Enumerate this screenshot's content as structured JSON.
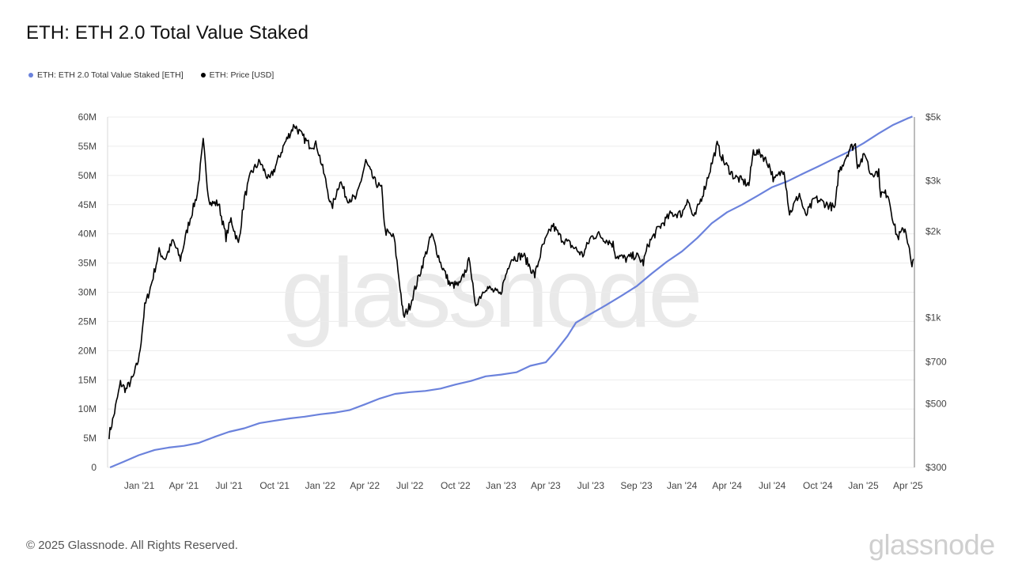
{
  "title": "ETH: ETH 2.0 Total Value Staked",
  "footer": "© 2025 Glassnode. All Rights Reserved.",
  "logo_text": "glassnode",
  "watermark_text": "glassnode",
  "colors": {
    "staked": "#6b82dc",
    "price": "#000000",
    "grid": "#ececec",
    "axis": "#7a7a7a"
  },
  "chart_data": {
    "type": "line",
    "title": "ETH: ETH 2.0 Total Value Staked",
    "x_ticks": [
      "Jan '21",
      "Apr '21",
      "Jul '21",
      "Oct '21",
      "Jan '22",
      "Apr '22",
      "Jul '22",
      "Oct '22",
      "Jan '23",
      "Apr '23",
      "Jul '23",
      "Sep '23",
      "Jan '24",
      "Apr '24",
      "Jul '24",
      "Oct '24",
      "Jan '25",
      "Apr '25"
    ],
    "y_left": {
      "ticks": [
        "0",
        "5M",
        "10M",
        "15M",
        "20M",
        "25M",
        "30M",
        "35M",
        "40M",
        "45M",
        "50M",
        "55M",
        "60M"
      ],
      "range": [
        0,
        60000000
      ]
    },
    "y_right": {
      "scale": "log",
      "ticks": [
        "$300",
        "$500",
        "$700",
        "$1k",
        "$2k",
        "$3k",
        "$5k"
      ],
      "tick_values": [
        300,
        500,
        700,
        1000,
        2000,
        3000,
        5000
      ],
      "range": [
        300,
        5000
      ]
    },
    "legend": "top-left",
    "grid": true,
    "series": [
      {
        "name": "ETH: ETH 2.0 Total Value Staked [ETH]",
        "axis": "left",
        "points": [
          [
            "2020-11-03",
            0
          ],
          [
            "2020-12-01",
            1000000
          ],
          [
            "2020-12-31",
            2100000
          ],
          [
            "2021-02-01",
            3000000
          ],
          [
            "2021-03-01",
            3400000
          ],
          [
            "2021-04-01",
            3700000
          ],
          [
            "2021-05-01",
            4200000
          ],
          [
            "2021-06-01",
            5200000
          ],
          [
            "2021-07-01",
            6100000
          ],
          [
            "2021-08-01",
            6700000
          ],
          [
            "2021-09-01",
            7600000
          ],
          [
            "2021-10-01",
            8000000
          ],
          [
            "2021-11-01",
            8400000
          ],
          [
            "2021-12-01",
            8700000
          ],
          [
            "2022-01-01",
            9100000
          ],
          [
            "2022-02-01",
            9400000
          ],
          [
            "2022-03-01",
            9800000
          ],
          [
            "2022-04-01",
            10800000
          ],
          [
            "2022-05-01",
            11800000
          ],
          [
            "2022-06-01",
            12600000
          ],
          [
            "2022-07-01",
            12900000
          ],
          [
            "2022-08-01",
            13100000
          ],
          [
            "2022-09-01",
            13500000
          ],
          [
            "2022-10-01",
            14200000
          ],
          [
            "2022-11-01",
            14800000
          ],
          [
            "2022-12-01",
            15600000
          ],
          [
            "2023-01-01",
            15900000
          ],
          [
            "2023-02-01",
            16300000
          ],
          [
            "2023-03-01",
            17400000
          ],
          [
            "2023-04-01",
            18000000
          ],
          [
            "2023-04-20",
            19800000
          ],
          [
            "2023-05-15",
            22500000
          ],
          [
            "2023-06-01",
            24800000
          ],
          [
            "2023-07-01",
            26300000
          ],
          [
            "2023-08-01",
            27800000
          ],
          [
            "2023-09-01",
            29400000
          ],
          [
            "2023-10-01",
            31000000
          ],
          [
            "2023-11-01",
            33200000
          ],
          [
            "2023-12-01",
            35200000
          ],
          [
            "2024-01-01",
            37000000
          ],
          [
            "2024-02-01",
            39300000
          ],
          [
            "2024-03-01",
            41800000
          ],
          [
            "2024-04-01",
            43700000
          ],
          [
            "2024-05-01",
            45000000
          ],
          [
            "2024-06-01",
            46500000
          ],
          [
            "2024-07-01",
            48000000
          ],
          [
            "2024-08-01",
            49000000
          ],
          [
            "2024-09-01",
            50300000
          ],
          [
            "2024-10-01",
            51500000
          ],
          [
            "2024-11-01",
            52800000
          ],
          [
            "2024-12-01",
            54000000
          ],
          [
            "2025-01-01",
            55500000
          ],
          [
            "2025-02-01",
            57200000
          ],
          [
            "2025-03-01",
            58600000
          ],
          [
            "2025-04-01",
            59800000
          ],
          [
            "2025-04-10",
            60100000
          ]
        ]
      },
      {
        "name": "ETH: Price [USD]",
        "axis": "right",
        "points": [
          [
            "2020-11-01",
            390
          ],
          [
            "2020-11-10",
            450
          ],
          [
            "2020-11-24",
            590
          ],
          [
            "2020-12-05",
            560
          ],
          [
            "2020-12-20",
            620
          ],
          [
            "2021-01-01",
            730
          ],
          [
            "2021-01-12",
            1090
          ],
          [
            "2021-01-25",
            1300
          ],
          [
            "2021-02-10",
            1700
          ],
          [
            "2021-02-22",
            1600
          ],
          [
            "2021-03-10",
            1850
          ],
          [
            "2021-03-25",
            1600
          ],
          [
            "2021-04-10",
            2100
          ],
          [
            "2021-04-28",
            2700
          ],
          [
            "2021-05-10",
            4100
          ],
          [
            "2021-05-20",
            2700
          ],
          [
            "2021-05-25",
            2500
          ],
          [
            "2021-06-10",
            2500
          ],
          [
            "2021-06-25",
            1900
          ],
          [
            "2021-07-05",
            2200
          ],
          [
            "2021-07-20",
            1800
          ],
          [
            "2021-08-01",
            2600
          ],
          [
            "2021-08-15",
            3200
          ],
          [
            "2021-09-01",
            3500
          ],
          [
            "2021-09-20",
            3000
          ],
          [
            "2021-10-01",
            3300
          ],
          [
            "2021-10-20",
            4000
          ],
          [
            "2021-11-10",
            4700
          ],
          [
            "2021-11-25",
            4300
          ],
          [
            "2021-12-10",
            4000
          ],
          [
            "2021-12-25",
            4000
          ],
          [
            "2022-01-10",
            3100
          ],
          [
            "2022-01-24",
            2400
          ],
          [
            "2022-02-10",
            3000
          ],
          [
            "2022-02-24",
            2600
          ],
          [
            "2022-03-15",
            2600
          ],
          [
            "2022-04-03",
            3500
          ],
          [
            "2022-04-20",
            3000
          ],
          [
            "2022-05-05",
            2800
          ],
          [
            "2022-05-12",
            2000
          ],
          [
            "2022-05-30",
            1900
          ],
          [
            "2022-06-13",
            1200
          ],
          [
            "2022-06-18",
            1000
          ],
          [
            "2022-07-01",
            1100
          ],
          [
            "2022-07-25",
            1500
          ],
          [
            "2022-08-14",
            1950
          ],
          [
            "2022-09-01",
            1550
          ],
          [
            "2022-09-20",
            1300
          ],
          [
            "2022-10-10",
            1300
          ],
          [
            "2022-10-30",
            1600
          ],
          [
            "2022-11-09",
            1100
          ],
          [
            "2022-12-01",
            1280
          ],
          [
            "2022-12-30",
            1200
          ],
          [
            "2023-01-20",
            1600
          ],
          [
            "2023-02-15",
            1650
          ],
          [
            "2023-03-10",
            1400
          ],
          [
            "2023-03-25",
            1750
          ],
          [
            "2023-04-15",
            2100
          ],
          [
            "2023-05-01",
            1900
          ],
          [
            "2023-05-20",
            1800
          ],
          [
            "2023-06-15",
            1650
          ],
          [
            "2023-07-01",
            1900
          ],
          [
            "2023-07-15",
            1950
          ],
          [
            "2023-08-15",
            1800
          ],
          [
            "2023-08-20",
            1650
          ],
          [
            "2023-09-10",
            1600
          ],
          [
            "2023-09-30",
            1650
          ],
          [
            "2023-10-15",
            1550
          ],
          [
            "2023-10-25",
            1800
          ],
          [
            "2023-11-15",
            2050
          ],
          [
            "2023-12-10",
            2300
          ],
          [
            "2024-01-01",
            2300
          ],
          [
            "2024-01-12",
            2600
          ],
          [
            "2024-01-25",
            2200
          ],
          [
            "2024-02-15",
            2800
          ],
          [
            "2024-03-12",
            4000
          ],
          [
            "2024-03-25",
            3500
          ],
          [
            "2024-04-15",
            3100
          ],
          [
            "2024-05-01",
            3000
          ],
          [
            "2024-05-15",
            2900
          ],
          [
            "2024-05-24",
            3800
          ],
          [
            "2024-06-10",
            3700
          ],
          [
            "2024-06-25",
            3400
          ],
          [
            "2024-07-05",
            3000
          ],
          [
            "2024-07-25",
            3300
          ],
          [
            "2024-08-05",
            2300
          ],
          [
            "2024-08-25",
            2700
          ],
          [
            "2024-09-06",
            2250
          ],
          [
            "2024-09-25",
            2600
          ],
          [
            "2024-10-15",
            2500
          ],
          [
            "2024-11-05",
            2400
          ],
          [
            "2024-11-12",
            3200
          ],
          [
            "2024-12-05",
            3900
          ],
          [
            "2024-12-16",
            4000
          ],
          [
            "2024-12-20",
            3400
          ],
          [
            "2025-01-06",
            3700
          ],
          [
            "2025-01-14",
            3200
          ],
          [
            "2025-02-01",
            3200
          ],
          [
            "2025-02-05",
            2700
          ],
          [
            "2025-02-20",
            2700
          ],
          [
            "2025-03-04",
            2100
          ],
          [
            "2025-03-11",
            1900
          ],
          [
            "2025-03-26",
            2050
          ],
          [
            "2025-04-02",
            1800
          ],
          [
            "2025-04-09",
            1470
          ],
          [
            "2025-04-12",
            1600
          ]
        ]
      }
    ]
  }
}
